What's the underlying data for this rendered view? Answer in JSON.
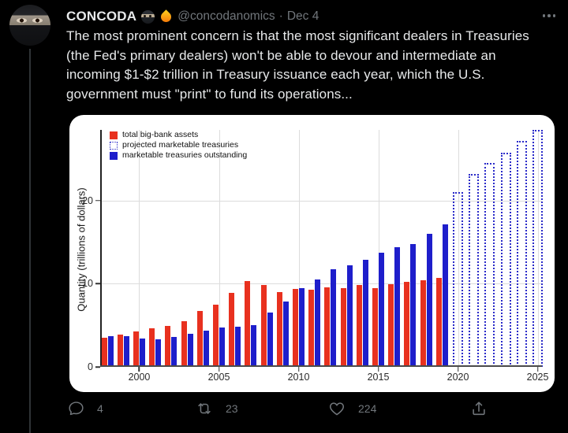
{
  "header": {
    "display_name": "CONCODA",
    "handle": "@concodanomics",
    "separator": "·",
    "date": "Dec 4"
  },
  "tweet": {
    "text": "The most prominent concern is that the most significant dealers in Treasuries (the Fed's primary dealers) won't be able to devour and intermediate an incoming $1-$2 trillion in Treasury issuance each year, which the U.S. government must \"print\" to fund its operations..."
  },
  "engagement": {
    "replies": "4",
    "retweets": "23",
    "likes": "224"
  },
  "colors": {
    "background": "#000000",
    "text_primary": "#e7e9ea",
    "text_secondary": "#71767b",
    "card": "#ffffff",
    "bar_red": "#e8311f",
    "bar_blue": "#1e1ecb",
    "projected_blue": "#2a2ac9",
    "gridline": "#dcdcdc"
  },
  "chart_data": {
    "type": "bar",
    "title": "",
    "xlabel": "",
    "ylabel": "Quantity (trillions of dollars)",
    "x_ticks": [
      2000,
      2005,
      2010,
      2015,
      2020,
      2025
    ],
    "y_ticks": [
      0,
      10,
      20
    ],
    "xlim": [
      1997.55,
      2025.27
    ],
    "ylim": [
      0,
      28.5
    ],
    "grid": true,
    "legend_position": "top-left",
    "years": [
      1998,
      1999,
      2000,
      2001,
      2002,
      2003,
      2004,
      2005,
      2006,
      2007,
      2008,
      2009,
      2010,
      2011,
      2012,
      2013,
      2014,
      2015,
      2016,
      2017,
      2018,
      2019
    ],
    "series": [
      {
        "name": "total big-bank assets",
        "color": "#e8311f",
        "style": "solid",
        "values": [
          3.5,
          3.9,
          4.3,
          4.6,
          4.9,
          5.5,
          6.7,
          7.5,
          8.9,
          10.3,
          9.8,
          9.0,
          9.4,
          9.3,
          9.6,
          9.5,
          9.8,
          9.5,
          9.9,
          10.2,
          10.4,
          10.7
        ]
      },
      {
        "name": "marketable treasuries outstanding",
        "color": "#1e1ecb",
        "style": "solid",
        "values": [
          3.7,
          3.7,
          3.4,
          3.3,
          3.6,
          4.0,
          4.4,
          4.7,
          4.8,
          5.0,
          6.5,
          7.9,
          9.5,
          10.5,
          11.7,
          12.2,
          12.9,
          13.7,
          14.4,
          14.8,
          16.0,
          17.1
        ]
      }
    ],
    "projected": {
      "name": "projected marketable treasuries",
      "color": "#2a2ac9",
      "style": "dotted",
      "years": [
        2020,
        2021,
        2022,
        2023,
        2024,
        2025
      ],
      "values": [
        21.0,
        23.2,
        24.5,
        25.8,
        27.2,
        28.5
      ]
    },
    "legend": [
      {
        "label": "total big-bank assets",
        "style": "red-solid"
      },
      {
        "label": "projected marketable treasuries",
        "style": "blue-dotted"
      },
      {
        "label": "marketable treasuries outstanding",
        "style": "blue-solid"
      }
    ]
  }
}
